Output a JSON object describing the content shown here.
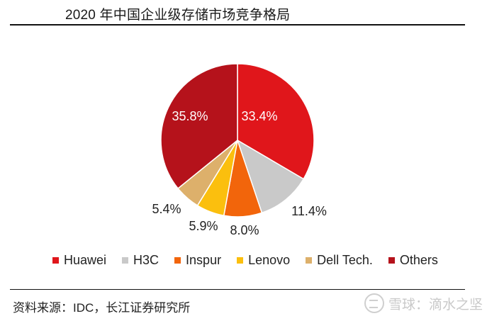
{
  "title": "2020 年中国企业级存储市场竞争格局",
  "chart_data": {
    "type": "pie",
    "title": "2020 年中国企业级存储市场竞争格局",
    "slices": [
      {
        "label": "Huawei",
        "value": 33.4,
        "value_label": "33.4%",
        "color": "#e0161b"
      },
      {
        "label": "H3C",
        "value": 11.4,
        "value_label": "11.4%",
        "color": "#c9c9c9"
      },
      {
        "label": "Inspur",
        "value": 8.0,
        "value_label": "8.0%",
        "color": "#f2650b"
      },
      {
        "label": "Lenovo",
        "value": 5.9,
        "value_label": "5.9%",
        "color": "#fbbf0e"
      },
      {
        "label": "Dell Tech.",
        "value": 5.4,
        "value_label": "5.4%",
        "color": "#ddb06b"
      },
      {
        "label": "Others",
        "value": 35.8,
        "value_label": "35.8%",
        "color": "#b5121b"
      }
    ],
    "start": "12 o'clock",
    "direction": "clockwise",
    "legend_position": "bottom"
  },
  "legend_labels": [
    "Huawei",
    "H3C",
    "Inspur",
    "Lenovo",
    "Dell Tech.",
    "Others"
  ],
  "source": "资料来源：IDC，长江证券研究所",
  "watermark": "雪球：滴水之坚"
}
